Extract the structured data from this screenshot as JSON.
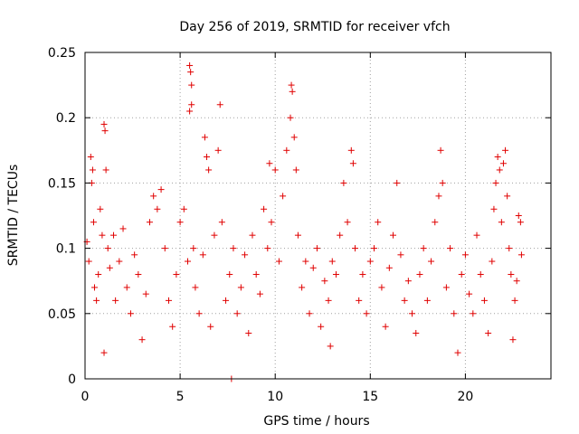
{
  "chart_data": {
    "type": "scatter",
    "title": "Day 256 of 2019, SRMTID for receiver vfch",
    "xlabel": "GPS time / hours",
    "ylabel": "SRMTID / TECUs",
    "xlim": [
      0,
      24.5
    ],
    "ylim": [
      0,
      0.25
    ],
    "xticks": [
      0,
      5,
      10,
      15,
      20
    ],
    "xtick_labels": [
      "0",
      "5",
      "10",
      "15",
      "20"
    ],
    "yticks": [
      0,
      0.05,
      0.1,
      0.15,
      0.2,
      0.25
    ],
    "ytick_labels": [
      "0",
      "0.05",
      "0.1",
      "0.15",
      "0.2",
      "0.25"
    ],
    "grid": true,
    "marker": "plus",
    "color": "#e00000",
    "series": [
      {
        "name": "SRMTID",
        "points": [
          [
            0.1,
            0.105
          ],
          [
            0.2,
            0.09
          ],
          [
            0.3,
            0.17
          ],
          [
            0.35,
            0.15
          ],
          [
            0.4,
            0.16
          ],
          [
            0.45,
            0.12
          ],
          [
            0.5,
            0.07
          ],
          [
            0.6,
            0.06
          ],
          [
            0.7,
            0.08
          ],
          [
            0.8,
            0.13
          ],
          [
            0.9,
            0.11
          ],
          [
            1.0,
            0.195
          ],
          [
            1.05,
            0.19
          ],
          [
            1.1,
            0.16
          ],
          [
            1.0,
            0.02
          ],
          [
            1.2,
            0.1
          ],
          [
            1.3,
            0.085
          ],
          [
            1.5,
            0.11
          ],
          [
            1.6,
            0.06
          ],
          [
            1.8,
            0.09
          ],
          [
            2.0,
            0.115
          ],
          [
            2.2,
            0.07
          ],
          [
            2.4,
            0.05
          ],
          [
            2.6,
            0.095
          ],
          [
            2.8,
            0.08
          ],
          [
            3.0,
            0.03
          ],
          [
            3.2,
            0.065
          ],
          [
            3.4,
            0.12
          ],
          [
            3.6,
            0.14
          ],
          [
            3.8,
            0.13
          ],
          [
            4.0,
            0.145
          ],
          [
            4.2,
            0.1
          ],
          [
            4.4,
            0.06
          ],
          [
            4.6,
            0.04
          ],
          [
            4.8,
            0.08
          ],
          [
            5.0,
            0.12
          ],
          [
            5.2,
            0.13
          ],
          [
            5.4,
            0.09
          ],
          [
            5.5,
            0.24
          ],
          [
            5.55,
            0.235
          ],
          [
            5.6,
            0.225
          ],
          [
            5.5,
            0.205
          ],
          [
            5.6,
            0.21
          ],
          [
            5.7,
            0.1
          ],
          [
            5.8,
            0.07
          ],
          [
            6.0,
            0.05
          ],
          [
            6.2,
            0.095
          ],
          [
            6.3,
            0.185
          ],
          [
            6.4,
            0.17
          ],
          [
            6.5,
            0.16
          ],
          [
            6.6,
            0.04
          ],
          [
            6.8,
            0.11
          ],
          [
            7.0,
            0.175
          ],
          [
            7.1,
            0.21
          ],
          [
            7.2,
            0.12
          ],
          [
            7.4,
            0.06
          ],
          [
            7.6,
            0.08
          ],
          [
            7.7,
            0.0
          ],
          [
            7.8,
            0.1
          ],
          [
            8.0,
            0.05
          ],
          [
            8.2,
            0.07
          ],
          [
            8.4,
            0.095
          ],
          [
            8.6,
            0.035
          ],
          [
            8.8,
            0.11
          ],
          [
            9.0,
            0.08
          ],
          [
            9.2,
            0.065
          ],
          [
            9.4,
            0.13
          ],
          [
            9.6,
            0.1
          ],
          [
            9.7,
            0.165
          ],
          [
            9.8,
            0.12
          ],
          [
            10.0,
            0.16
          ],
          [
            10.2,
            0.09
          ],
          [
            10.4,
            0.14
          ],
          [
            10.6,
            0.175
          ],
          [
            10.8,
            0.2
          ],
          [
            10.85,
            0.225
          ],
          [
            10.9,
            0.22
          ],
          [
            11.0,
            0.185
          ],
          [
            11.1,
            0.16
          ],
          [
            11.2,
            0.11
          ],
          [
            11.4,
            0.07
          ],
          [
            11.6,
            0.09
          ],
          [
            11.8,
            0.05
          ],
          [
            12.0,
            0.085
          ],
          [
            12.2,
            0.1
          ],
          [
            12.4,
            0.04
          ],
          [
            12.6,
            0.075
          ],
          [
            12.8,
            0.06
          ],
          [
            12.9,
            0.025
          ],
          [
            13.0,
            0.09
          ],
          [
            13.2,
            0.08
          ],
          [
            13.4,
            0.11
          ],
          [
            13.6,
            0.15
          ],
          [
            13.8,
            0.12
          ],
          [
            14.0,
            0.175
          ],
          [
            14.1,
            0.165
          ],
          [
            14.2,
            0.1
          ],
          [
            14.4,
            0.06
          ],
          [
            14.6,
            0.08
          ],
          [
            14.8,
            0.05
          ],
          [
            15.0,
            0.09
          ],
          [
            15.2,
            0.1
          ],
          [
            15.4,
            0.12
          ],
          [
            15.6,
            0.07
          ],
          [
            15.8,
            0.04
          ],
          [
            16.0,
            0.085
          ],
          [
            16.2,
            0.11
          ],
          [
            16.4,
            0.15
          ],
          [
            16.6,
            0.095
          ],
          [
            16.8,
            0.06
          ],
          [
            17.0,
            0.075
          ],
          [
            17.2,
            0.05
          ],
          [
            17.4,
            0.035
          ],
          [
            17.6,
            0.08
          ],
          [
            17.8,
            0.1
          ],
          [
            18.0,
            0.06
          ],
          [
            18.2,
            0.09
          ],
          [
            18.4,
            0.12
          ],
          [
            18.6,
            0.14
          ],
          [
            18.7,
            0.175
          ],
          [
            18.8,
            0.15
          ],
          [
            19.0,
            0.07
          ],
          [
            19.2,
            0.1
          ],
          [
            19.4,
            0.05
          ],
          [
            19.6,
            0.02
          ],
          [
            19.8,
            0.08
          ],
          [
            20.0,
            0.095
          ],
          [
            20.2,
            0.065
          ],
          [
            20.4,
            0.05
          ],
          [
            20.6,
            0.11
          ],
          [
            20.8,
            0.08
          ],
          [
            21.0,
            0.06
          ],
          [
            21.2,
            0.035
          ],
          [
            21.4,
            0.09
          ],
          [
            21.5,
            0.13
          ],
          [
            21.6,
            0.15
          ],
          [
            21.7,
            0.17
          ],
          [
            21.8,
            0.16
          ],
          [
            21.9,
            0.12
          ],
          [
            22.0,
            0.165
          ],
          [
            22.1,
            0.175
          ],
          [
            22.2,
            0.14
          ],
          [
            22.3,
            0.1
          ],
          [
            22.4,
            0.08
          ],
          [
            22.5,
            0.03
          ],
          [
            22.6,
            0.06
          ],
          [
            22.7,
            0.075
          ],
          [
            22.8,
            0.125
          ],
          [
            22.9,
            0.12
          ],
          [
            22.95,
            0.095
          ]
        ]
      }
    ]
  }
}
